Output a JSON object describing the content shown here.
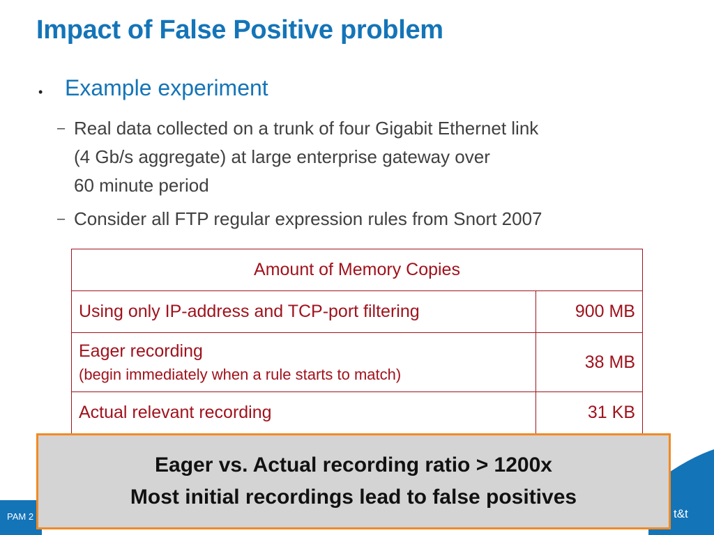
{
  "slide": {
    "title": "Impact of False Positive problem",
    "bullet": {
      "marker": "•",
      "text": "Example experiment"
    },
    "subbullets": [
      {
        "marker": "–",
        "lines": [
          "Real data collected on a trunk of four Gigabit Ethernet link",
          "(4 Gb/s aggregate) at large enterprise gateway over",
          "60 minute period"
        ]
      },
      {
        "marker": "–",
        "lines": [
          "Consider all FTP regular expression rules from Snort 2007"
        ]
      }
    ],
    "table": {
      "header": "Amount of Memory Copies",
      "rows": [
        {
          "label": "Using only IP-address and TCP-port filtering",
          "note": "",
          "value": "900 MB"
        },
        {
          "label": "Eager recording",
          "note": "(begin immediately when a rule starts to match)",
          "value": "38 MB"
        },
        {
          "label": "Actual relevant recording",
          "note": "",
          "value": "31 KB"
        }
      ]
    },
    "callout": {
      "line1": "Eager vs. Actual recording ratio > 1200x",
      "line2": "Most initial recordings lead to false positives"
    },
    "footer": {
      "left": "PAM 2",
      "right": "t&t"
    },
    "colors": {
      "title": "#1474b8",
      "table": "#a0121c",
      "callout_border": "#f08a24",
      "callout_bg": "#d4d4d4",
      "footer": "#1474b8"
    }
  }
}
